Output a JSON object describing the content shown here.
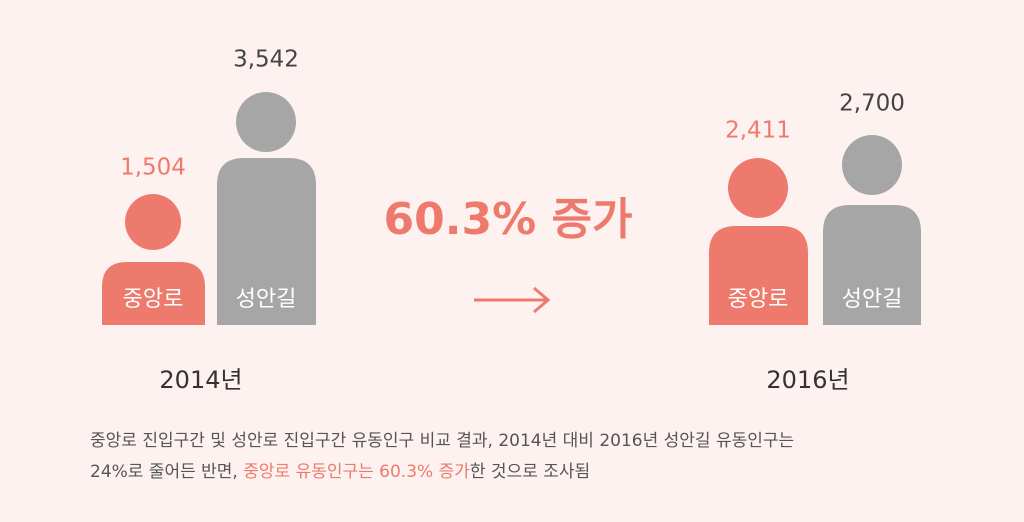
{
  "groups": [
    {
      "year": "2014년",
      "figures": [
        {
          "label": "중앙로",
          "value": "1,504"
        },
        {
          "label": "성안길",
          "value": "3,542"
        }
      ]
    },
    {
      "year": "2016년",
      "figures": [
        {
          "label": "중앙로",
          "value": "2,411"
        },
        {
          "label": "성안길",
          "value": "2,700"
        }
      ]
    }
  ],
  "change": "60.3% 증가",
  "caption": {
    "line1": "중앙로 진입구간 및 성안로 진입구간 유동인구 비교 결과, 2014년 대비 2016년 성안길 유동인구는",
    "line2_start": "24%로 줄어든 반면, ",
    "line2_highlight": "중앙로 유동인구는 60.3% 증가",
    "line2_end": "한 것으로 조사됨"
  }
}
